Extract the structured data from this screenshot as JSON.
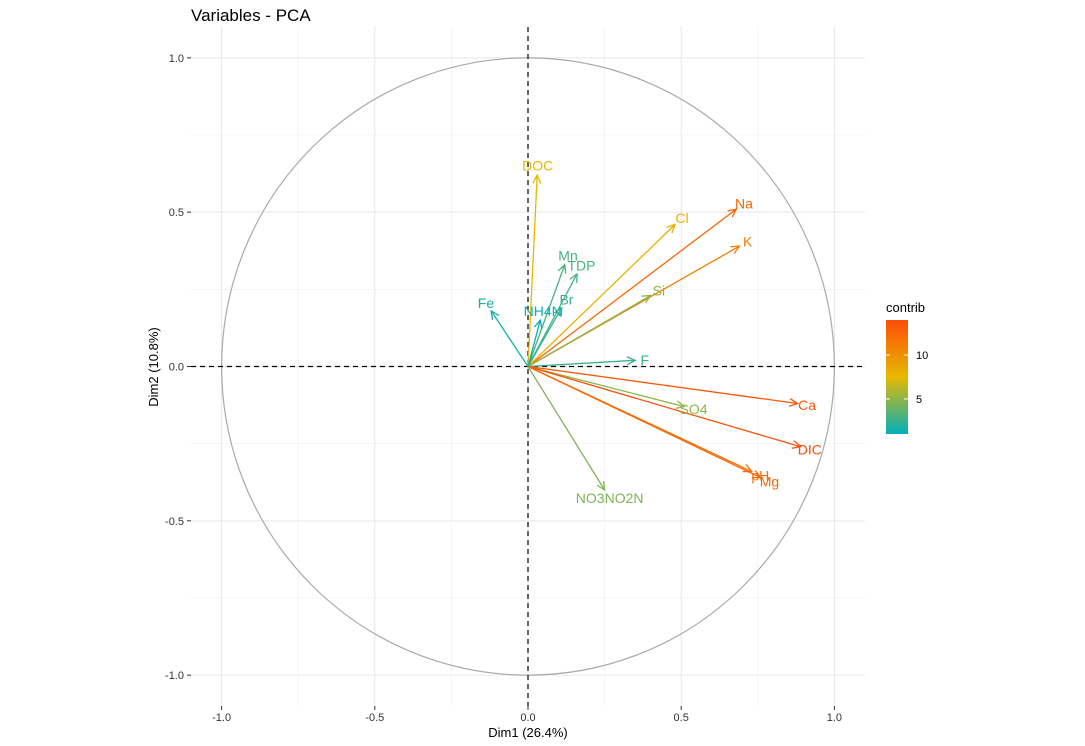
{
  "chart_data": {
    "type": "scatter",
    "title": "Variables - PCA",
    "xlabel": "Dim1 (26.4%)",
    "ylabel": "Dim2 (10.8%)",
    "xlim": [
      -1.1,
      1.1
    ],
    "ylim": [
      -1.1,
      1.1
    ],
    "x_ticks": [
      -1.0,
      -0.5,
      0.0,
      0.5,
      1.0
    ],
    "x_tick_labels": [
      "-1.0",
      "-0.5",
      "0.0",
      "0.5",
      "1.0"
    ],
    "y_ticks": [
      -1.0,
      -0.5,
      0.0,
      0.5,
      1.0
    ],
    "y_tick_labels": [
      "-1.0",
      "-0.5",
      "0.0",
      "0.5",
      "1.0"
    ],
    "grid": true,
    "correlation_circle": true,
    "legend": {
      "title": "contrib",
      "placement": "right",
      "range": [
        1,
        14
      ],
      "ticks": [
        5,
        10
      ],
      "tick_labels": [
        "5",
        "10"
      ],
      "colors": [
        "#00AFBB",
        "#E7B800",
        "#FC4E07"
      ]
    },
    "variables": [
      {
        "name": "DOC",
        "x": 0.03,
        "y": 0.62,
        "contrib": 7.5
      },
      {
        "name": "Na",
        "x": 0.68,
        "y": 0.51,
        "contrib": 12.5
      },
      {
        "name": "K",
        "x": 0.69,
        "y": 0.39,
        "contrib": 11.0
      },
      {
        "name": "Cl",
        "x": 0.48,
        "y": 0.46,
        "contrib": 8.0
      },
      {
        "name": "Mn",
        "x": 0.12,
        "y": 0.33,
        "contrib": 3.0
      },
      {
        "name": "TDP",
        "x": 0.16,
        "y": 0.3,
        "contrib": 3.0
      },
      {
        "name": "Si",
        "x": 0.4,
        "y": 0.23,
        "contrib": 5.0
      },
      {
        "name": "Br",
        "x": 0.11,
        "y": 0.19,
        "contrib": 2.5
      },
      {
        "name": "Fe",
        "x": -0.12,
        "y": 0.18,
        "contrib": 1.5
      },
      {
        "name": "NH4N",
        "x": 0.04,
        "y": 0.15,
        "contrib": 1.2
      },
      {
        "name": "F",
        "x": 0.35,
        "y": 0.02,
        "contrib": 2.5
      },
      {
        "name": "Ca",
        "x": 0.88,
        "y": -0.12,
        "contrib": 13.5
      },
      {
        "name": "SO4",
        "x": 0.51,
        "y": -0.13,
        "contrib": 5.0
      },
      {
        "name": "DIC",
        "x": 0.89,
        "y": -0.26,
        "contrib": 14.0
      },
      {
        "name": "pH",
        "x": 0.73,
        "y": -0.34,
        "contrib": 12.0
      },
      {
        "name": "Mg",
        "x": 0.76,
        "y": -0.36,
        "contrib": 12.5
      },
      {
        "name": "NO3NO2N",
        "x": 0.25,
        "y": -0.4,
        "contrib": 4.5
      }
    ]
  }
}
